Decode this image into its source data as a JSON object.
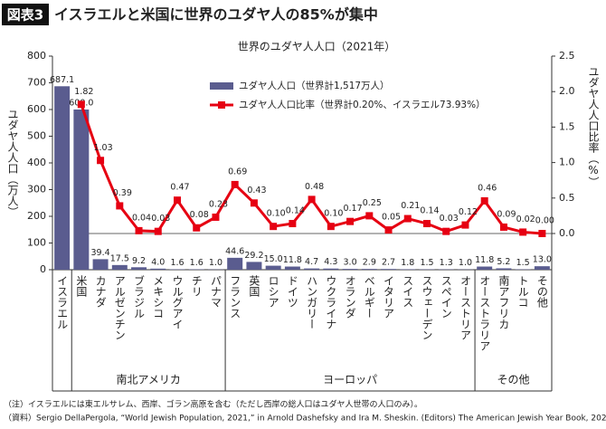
{
  "header": {
    "badge": "図表3",
    "title": "イスラエルと米国に世界のユダヤ人の85%が集中"
  },
  "chart_data": {
    "type": "bar-line",
    "title": "世界のユダヤ人人口（2021年）",
    "ylabel": "ユダヤ人人口（万人）",
    "y2label": "ユダヤ人人口比率（%）",
    "categories": [
      "イスラエル",
      "米国",
      "カナダ",
      "アルゼンチン",
      "ブラジル",
      "メキシコ",
      "ウルグアイ",
      "チリ",
      "パナマ",
      "フランス",
      "英国",
      "ロシア",
      "ドイツ",
      "ハンガリー",
      "ウクライナ",
      "オランダ",
      "ベルギー",
      "イタリア",
      "スイス",
      "スウェーデン",
      "スペイン",
      "オーストリア",
      "オーストラリア",
      "南アフリカ",
      "トルコ",
      "その他"
    ],
    "groups": [
      "南北アメリカ",
      "ヨーロッパ",
      "その他"
    ],
    "series": [
      {
        "name": "ユダヤ人人口（世界計1,517万人）",
        "color": "#5a5c8f",
        "kind": "bar",
        "values": [
          687.1,
          600.0,
          39.4,
          17.5,
          9.2,
          4.0,
          1.6,
          1.6,
          1.0,
          44.6,
          29.2,
          15.0,
          11.8,
          4.7,
          4.3,
          3.0,
          2.9,
          2.7,
          1.8,
          1.5,
          1.3,
          1.0,
          11.8,
          5.2,
          1.5,
          13.0
        ],
        "value_labels": [
          "687.1",
          "600.0",
          "39.4",
          "17.5",
          "9.2",
          "4.0",
          "1.6",
          "1.6",
          "1.0",
          "44.6",
          "29.2",
          "15.0",
          "11.8",
          "4.7",
          "4.3",
          "3.0",
          "2.9",
          "2.7",
          "1.8",
          "1.5",
          "1.3",
          "1.0",
          "11.8",
          "5.2",
          "1.5",
          "13.0"
        ]
      },
      {
        "name": "ユダヤ人人口比率（世界計0.20%、イスラエル73.93%）",
        "color": "#e60012",
        "kind": "line",
        "axis": "y2",
        "values": [
          null,
          1.82,
          1.03,
          0.39,
          0.04,
          0.03,
          0.47,
          0.08,
          0.23,
          0.69,
          0.43,
          0.1,
          0.14,
          0.48,
          0.1,
          0.17,
          0.25,
          0.05,
          0.21,
          0.14,
          0.03,
          0.12,
          0.46,
          0.09,
          0.02,
          0.0
        ],
        "value_labels": [
          null,
          "1.82",
          "1.03",
          "0.39",
          "0.04",
          "0.03",
          "0.47",
          "0.08",
          "0.23",
          "0.69",
          "0.43",
          "0.10",
          "0.14",
          "0.48",
          "0.10",
          "0.17",
          "0.25",
          "0.05",
          "0.21",
          "0.14",
          "0.03",
          "0.12",
          "0.46",
          "0.09",
          "0.02",
          "0.00"
        ]
      }
    ],
    "ylim": [
      0,
      800
    ],
    "yticks": [
      0,
      100,
      200,
      300,
      400,
      500,
      600,
      700,
      800
    ],
    "y2lim": [
      -0.51,
      2.5
    ],
    "y2ticks": [
      {
        "value": 0,
        "label": "0.0"
      },
      0.5,
      {
        "value": 1,
        "label": "1.0"
      },
      1.5,
      {
        "value": 2,
        "label": "2.0"
      },
      2.5
    ]
  },
  "notes": [
    "（注）イスラエルには東エルサレム、西岸、ゴラン高原を含む（ただし西岸の総人口はユダヤ人世帯の人口のみ）。",
    "（資料）Sergio DellaPergola, “World Jewish Population, 2021,” in Arnold Dashefsky and Ira M. Sheskin. (Editors) The American Jewish Year Book, 2021"
  ]
}
